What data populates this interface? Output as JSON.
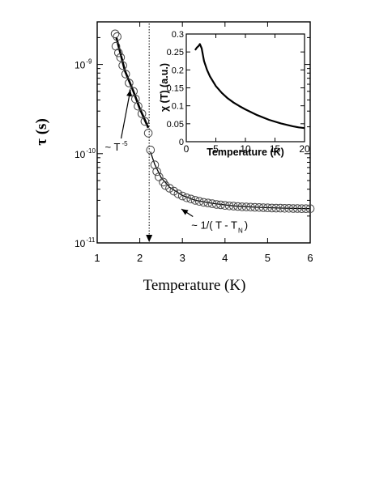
{
  "chart_data": [
    {
      "type": "scatter",
      "xlabel": "Temperature (K)",
      "ylabel": "τ (s)",
      "yscale": "log",
      "xlim": [
        1,
        6
      ],
      "ylim": [
        1e-11,
        3e-09
      ],
      "x_ticks": [
        1,
        2,
        3,
        4,
        5,
        6
      ],
      "y_ticks": [
        {
          "value": 1e-11,
          "label": "10",
          "exp": "-11"
        },
        {
          "value": 1e-10,
          "label": "10",
          "exp": "-10"
        },
        {
          "value": 1e-09,
          "label": "10",
          "exp": "-9"
        }
      ],
      "grid": false,
      "legend": "none",
      "series": [
        {
          "marker": "open-circle",
          "points": [
            [
              1.42,
              2.2e-09
            ],
            [
              1.47,
              2.05e-09
            ],
            [
              1.44,
              1.6e-09
            ],
            [
              1.5,
              1.35e-09
            ],
            [
              1.55,
              1.2e-09
            ],
            [
              1.6,
              9.7e-10
            ],
            [
              1.67,
              7.8e-10
            ],
            [
              1.75,
              6.2e-10
            ],
            [
              1.85,
              5e-10
            ],
            [
              1.9,
              4.1e-10
            ],
            [
              1.96,
              3.4e-10
            ],
            [
              2.05,
              2.8e-10
            ],
            [
              2.12,
              2.3e-10
            ],
            [
              2.2,
              1.7e-10
            ],
            [
              2.25,
              1.1e-10
            ],
            [
              2.35,
              7.5e-11
            ],
            [
              2.4,
              6.3e-11
            ],
            [
              2.45,
              5.5e-11
            ],
            [
              2.55,
              4.8e-11
            ],
            [
              2.6,
              4.4e-11
            ],
            [
              2.7,
              4.1e-11
            ],
            [
              2.8,
              3.8e-11
            ],
            [
              2.9,
              3.55e-11
            ],
            [
              3.0,
              3.35e-11
            ],
            [
              3.1,
              3.2e-11
            ],
            [
              3.2,
              3.1e-11
            ],
            [
              3.3,
              3e-11
            ],
            [
              3.4,
              2.92e-11
            ],
            [
              3.5,
              2.85e-11
            ],
            [
              3.6,
              2.8e-11
            ],
            [
              3.7,
              2.75e-11
            ],
            [
              3.8,
              2.7e-11
            ],
            [
              3.9,
              2.67e-11
            ],
            [
              4.0,
              2.63e-11
            ],
            [
              4.1,
              2.6e-11
            ],
            [
              4.2,
              2.58e-11
            ],
            [
              4.3,
              2.56e-11
            ],
            [
              4.4,
              2.54e-11
            ],
            [
              4.5,
              2.53e-11
            ],
            [
              4.6,
              2.52e-11
            ],
            [
              4.7,
              2.5e-11
            ],
            [
              4.8,
              2.49e-11
            ],
            [
              4.9,
              2.48e-11
            ],
            [
              5.0,
              2.47e-11
            ],
            [
              5.1,
              2.46e-11
            ],
            [
              5.2,
              2.45e-11
            ],
            [
              5.3,
              2.45e-11
            ],
            [
              5.4,
              2.44e-11
            ],
            [
              5.5,
              2.44e-11
            ],
            [
              5.6,
              2.43e-11
            ],
            [
              5.7,
              2.43e-11
            ],
            [
              5.8,
              2.42e-11
            ],
            [
              5.9,
              2.42e-11
            ],
            [
              6.0,
              2.42e-11
            ]
          ]
        },
        {
          "type": "line",
          "style": "solid-thick",
          "points": [
            [
              1.45,
              2e-09
            ],
            [
              1.65,
              8.5e-10
            ],
            [
              1.85,
              5e-10
            ],
            [
              2.0,
              3.2e-10
            ],
            [
              2.2,
              1.95e-10
            ]
          ]
        },
        {
          "type": "line",
          "style": "solid-thin",
          "points": [
            [
              2.25,
              1.05e-10
            ],
            [
              2.35,
              7.6e-11
            ],
            [
              2.5,
              5.4e-11
            ],
            [
              2.7,
              4.2e-11
            ],
            [
              3.0,
              3.4e-11
            ],
            [
              3.3,
              3e-11
            ],
            [
              3.7,
              2.78e-11
            ],
            [
              4.2,
              2.6e-11
            ],
            [
              4.8,
              2.5e-11
            ],
            [
              5.4,
              2.45e-11
            ],
            [
              6.0,
              2.42e-11
            ]
          ]
        }
      ],
      "vline": {
        "x": 2.22,
        "style": "dotted",
        "arrow": "down"
      },
      "annotations": [
        {
          "text": "~ T",
          "sup": "-5",
          "at": [
            1.6,
            1.2e-10
          ],
          "arrow_to": [
            1.78,
            5.2e-10
          ]
        },
        {
          "text": "~ 1/( T - T",
          "sub": "N",
          "tail": ")",
          "at": [
            3.4,
            1.6e-11
          ],
          "arrow_to": [
            2.9,
            2.5e-11
          ]
        }
      ]
    },
    {
      "type": "line",
      "inset": true,
      "xlabel": "Temperature (K)",
      "ylabel": "χ (T) (a.u.)",
      "xlim": [
        0,
        20
      ],
      "ylim": [
        0,
        0.3
      ],
      "x_ticks": [
        0,
        5,
        10,
        15,
        20
      ],
      "y_ticks": [
        0,
        0.05,
        0.1,
        0.15,
        0.2,
        0.25,
        0.3
      ],
      "y_tick_labels": [
        "0",
        "0.05",
        "0.1",
        "0.15",
        "0.2",
        "0.25",
        "0.3"
      ],
      "grid": false,
      "series": [
        {
          "x": [
            1.5,
            1.8,
            2.1,
            2.3,
            2.6,
            3,
            3.5,
            4,
            5,
            6,
            7,
            8,
            9,
            10,
            12,
            14,
            16,
            18,
            19,
            20
          ],
          "y": [
            0.255,
            0.262,
            0.267,
            0.272,
            0.26,
            0.225,
            0.2,
            0.182,
            0.155,
            0.136,
            0.121,
            0.109,
            0.099,
            0.09,
            0.074,
            0.061,
            0.051,
            0.043,
            0.04,
            0.038
          ]
        }
      ]
    }
  ]
}
